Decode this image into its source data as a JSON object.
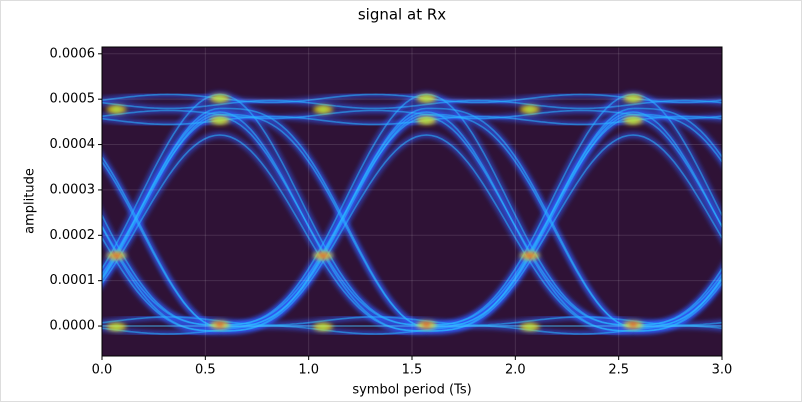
{
  "chart_data": {
    "type": "eye",
    "title": "signal at Rx",
    "xlabel": "symbol period (Ts)",
    "ylabel": "amplitude",
    "xlim": [
      0,
      3
    ],
    "ylim": [
      -6.6e-05,
      0.000615
    ],
    "xticks": [
      {
        "value": 0,
        "label": "0.0"
      },
      {
        "value": 0.5,
        "label": "0.5"
      },
      {
        "value": 1,
        "label": "1.0"
      },
      {
        "value": 1.5,
        "label": "1.5"
      },
      {
        "value": 2,
        "label": "2.0"
      },
      {
        "value": 2.5,
        "label": "2.5"
      },
      {
        "value": 3,
        "label": "3.0"
      }
    ],
    "yticks": [
      {
        "value": 0,
        "label": "0.0000"
      },
      {
        "value": 0.0001,
        "label": "0.0001"
      },
      {
        "value": 0.0002,
        "label": "0.0002"
      },
      {
        "value": 0.0003,
        "label": "0.0003"
      },
      {
        "value": 0.0004,
        "label": "0.0004"
      },
      {
        "value": 0.0005,
        "label": "0.0005"
      },
      {
        "value": 0.0006,
        "label": "0.0006"
      }
    ],
    "grid": true,
    "background": "#2f1236"
  }
}
